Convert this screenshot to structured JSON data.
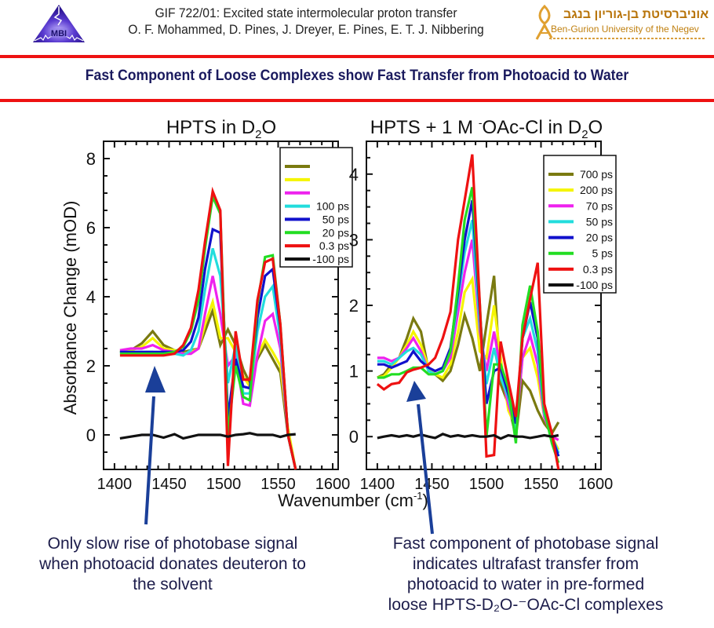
{
  "header": {
    "line1": "GIF 722/01: Excited state intermolecular proton transfer",
    "line2": "O. F. Mohammed, D. Pines, J. Dreyer, E. Pines, E. T. J. Nibbering",
    "logo_left_text": "MBI",
    "logo_right_hebrew": "אוניברסיטת בן-גוריון בנגב",
    "logo_right_english": "Ben-Gurion University of the Negev"
  },
  "banner": {
    "title": "Fast Component of Loose Complexes show  Fast Transfer from Photoacid to Water",
    "rule_color": "#ee1111",
    "title_color": "#1a1a5e"
  },
  "captions": {
    "left": "Only slow rise of photobase signal when photoacid donates deuteron to the solvent",
    "right_lines": [
      "Fast component of photobase signal",
      "indicates ultrafast transfer from",
      "photoacid to water in pre-formed",
      "loose HPTS-D₂O-⁻OAc-Cl complexes"
    ]
  },
  "arrow_color": "#1a3f99",
  "chart_data": [
    {
      "type": "line",
      "title": "HPTS in D₂O",
      "title_parts": {
        "main": "HPTS in D",
        "sub": "2",
        "tail": "O"
      },
      "xlabel": "Wavenumber (cm⁻¹)",
      "ylabel": "Absorbance Change (mOD)",
      "xlim": [
        1390,
        1605
      ],
      "ylim": [
        -1,
        8.5
      ],
      "xticks": [
        1400,
        1450,
        1500,
        1550,
        1600
      ],
      "yticks": [
        0,
        2,
        4,
        6,
        8
      ],
      "legend_position": "top-right",
      "x": [
        1405,
        1415,
        1425,
        1435,
        1445,
        1455,
        1463,
        1470,
        1477,
        1483,
        1490,
        1497,
        1504,
        1511,
        1518,
        1524,
        1531,
        1538,
        1545,
        1552,
        1559,
        1566
      ],
      "series": [
        {
          "name": "",
          "color": "#7a7a10",
          "values": [
            2.4,
            2.45,
            2.65,
            3.0,
            2.6,
            2.45,
            2.4,
            2.45,
            2.5,
            3.0,
            3.6,
            2.6,
            3.05,
            2.6,
            1.9,
            1.5,
            2.2,
            2.6,
            2.2,
            1.8,
            0.0,
            -1.0
          ]
        },
        {
          "name": "",
          "color": "#f5f500",
          "values": [
            2.4,
            2.45,
            2.55,
            2.8,
            2.5,
            2.45,
            2.35,
            2.4,
            2.5,
            3.2,
            3.85,
            2.8,
            2.8,
            2.4,
            1.7,
            1.4,
            2.3,
            2.75,
            2.4,
            2.0,
            0.2,
            -1.0
          ]
        },
        {
          "name": "",
          "color": "#ee22ee",
          "values": [
            2.45,
            2.5,
            2.5,
            2.6,
            2.45,
            2.4,
            2.35,
            2.35,
            2.5,
            3.5,
            4.6,
            3.5,
            2.0,
            2.3,
            0.9,
            0.85,
            2.3,
            3.3,
            3.5,
            2.5,
            0.0,
            -1.0
          ]
        },
        {
          "name": "100 ps",
          "color": "#22dddd",
          "values": [
            2.4,
            2.4,
            2.4,
            2.4,
            2.35,
            2.35,
            2.3,
            2.45,
            3.0,
            4.2,
            5.4,
            4.6,
            1.5,
            2.6,
            1.2,
            1.2,
            3.0,
            4.0,
            4.3,
            2.8,
            0.0,
            -1.0
          ]
        },
        {
          "name": "50 ps",
          "color": "#1111cc",
          "values": [
            2.4,
            2.4,
            2.4,
            2.4,
            2.4,
            2.4,
            2.45,
            2.7,
            3.4,
            4.8,
            5.95,
            5.85,
            0.5,
            2.2,
            1.4,
            1.35,
            3.4,
            4.6,
            4.8,
            3.1,
            0.0,
            -1.0
          ]
        },
        {
          "name": "20 ps",
          "color": "#22dd22",
          "values": [
            2.35,
            2.35,
            2.35,
            2.35,
            2.35,
            2.4,
            2.55,
            3.0,
            3.9,
            5.4,
            6.9,
            6.4,
            0.0,
            2.0,
            1.1,
            1.0,
            3.8,
            5.15,
            5.2,
            3.2,
            0.0,
            -1.0
          ]
        },
        {
          "name": "0.3 ps",
          "color": "#ee1111",
          "values": [
            2.3,
            2.3,
            2.3,
            2.3,
            2.3,
            2.35,
            2.6,
            3.1,
            4.2,
            5.6,
            7.05,
            6.5,
            -0.9,
            3.0,
            1.6,
            1.6,
            3.9,
            5.0,
            5.1,
            3.2,
            0.0,
            -1.0
          ]
        },
        {
          "name": "-100 ps",
          "color": "#111111",
          "values": [
            -0.1,
            -0.05,
            0.0,
            0.0,
            -0.08,
            0.02,
            -0.1,
            -0.05,
            0.0,
            0.0,
            0.0,
            0.0,
            -0.05,
            0.0,
            0.02,
            0.05,
            0.0,
            0.0,
            0.0,
            -0.06,
            0.0,
            0.02
          ]
        }
      ]
    },
    {
      "type": "line",
      "title": "HPTS + 1 M ⁻OAc-Cl in D₂O",
      "title_parts": {
        "main": "HPTS + 1 M ",
        "sup": "-",
        "mid": "OAc-Cl in D",
        "sub": "2",
        "tail": "O"
      },
      "xlabel": "Wavenumber (cm⁻¹)",
      "ylabel": "",
      "xlim": [
        1390,
        1605
      ],
      "ylim": [
        -0.5,
        4.5
      ],
      "xticks": [
        1400,
        1450,
        1500,
        1550,
        1600
      ],
      "yticks": [
        0,
        1,
        2,
        3,
        4
      ],
      "legend_position": "top-right",
      "x": [
        1400,
        1406,
        1413,
        1420,
        1427,
        1433,
        1440,
        1447,
        1453,
        1460,
        1467,
        1474,
        1480,
        1487,
        1494,
        1500,
        1507,
        1513,
        1520,
        1527,
        1533,
        1540,
        1547,
        1553,
        1560,
        1566
      ],
      "series": [
        {
          "name": "700 ps",
          "color": "#7a7a10",
          "values": [
            0.9,
            0.95,
            1.1,
            1.2,
            1.5,
            1.8,
            1.6,
            1.0,
            0.95,
            0.85,
            1.0,
            1.4,
            1.85,
            1.5,
            1.0,
            1.7,
            2.45,
            0.8,
            0.5,
            0.0,
            0.85,
            0.7,
            0.4,
            0.2,
            0.05,
            0.22
          ]
        },
        {
          "name": "200 ps",
          "color": "#f5f500",
          "values": [
            0.9,
            0.92,
            1.05,
            1.2,
            1.4,
            1.6,
            1.4,
            1.05,
            0.95,
            0.9,
            1.1,
            1.6,
            2.2,
            2.4,
            1.3,
            1.2,
            2.0,
            1.2,
            0.4,
            0.15,
            1.2,
            1.35,
            0.9,
            0.3,
            0.0,
            -0.2
          ]
        },
        {
          "name": "70 ps",
          "color": "#ee22ee",
          "values": [
            1.2,
            1.2,
            1.15,
            1.2,
            1.35,
            1.5,
            1.3,
            1.0,
            0.95,
            1.0,
            1.2,
            1.9,
            2.5,
            3.0,
            1.6,
            1.0,
            1.6,
            1.0,
            0.5,
            0.1,
            1.2,
            1.55,
            1.1,
            0.3,
            0.0,
            -0.05
          ]
        },
        {
          "name": "50 ps",
          "color": "#22dddd",
          "values": [
            1.15,
            1.15,
            1.1,
            1.2,
            1.3,
            1.35,
            1.25,
            1.0,
            0.95,
            1.0,
            1.3,
            2.1,
            2.8,
            3.3,
            1.7,
            0.8,
            1.35,
            0.9,
            0.6,
            0.1,
            1.5,
            1.8,
            1.3,
            0.35,
            0.0,
            -0.25
          ]
        },
        {
          "name": "20 ps",
          "color": "#1111cc",
          "values": [
            1.1,
            1.1,
            1.05,
            1.1,
            1.15,
            1.3,
            1.15,
            1.05,
            1.0,
            1.05,
            1.35,
            2.2,
            3.0,
            3.6,
            1.9,
            0.5,
            1.0,
            1.05,
            0.65,
            0.2,
            1.5,
            2.05,
            1.5,
            0.4,
            0.0,
            -0.3
          ]
        },
        {
          "name": "5 ps",
          "color": "#22dd22",
          "values": [
            0.9,
            0.9,
            0.95,
            0.95,
            1.0,
            1.05,
            1.05,
            0.95,
            0.95,
            1.0,
            1.3,
            2.3,
            3.3,
            3.8,
            2.0,
            0.0,
            1.1,
            1.1,
            0.75,
            -0.1,
            1.7,
            2.3,
            1.6,
            0.4,
            -0.1,
            -0.4
          ]
        },
        {
          "name": "0.3 ps",
          "color": "#ee1111",
          "values": [
            0.8,
            0.72,
            0.8,
            0.82,
            0.98,
            1.02,
            1.05,
            1.1,
            1.2,
            1.5,
            1.9,
            3.0,
            3.6,
            4.3,
            2.0,
            -0.3,
            -0.28,
            1.45,
            0.85,
            0.3,
            1.5,
            2.1,
            2.65,
            0.5,
            0.05,
            -0.5
          ]
        },
        {
          "name": "-100 ps",
          "color": "#111111",
          "values": [
            -0.02,
            0.0,
            0.02,
            0.0,
            0.02,
            0.0,
            0.03,
            0.0,
            -0.02,
            0.04,
            0.0,
            0.02,
            0.0,
            0.02,
            0.0,
            0.0,
            0.02,
            -0.03,
            0.02,
            0.0,
            0.0,
            -0.02,
            0.0,
            0.02,
            0.0,
            0.02
          ]
        }
      ]
    }
  ]
}
